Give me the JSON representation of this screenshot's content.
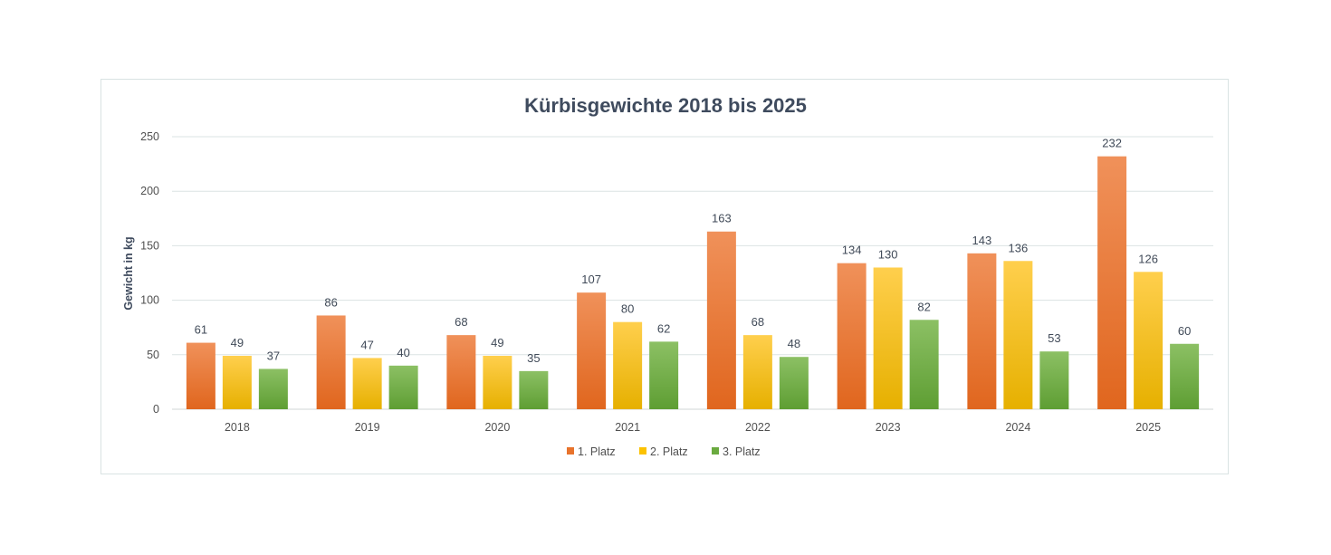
{
  "chart_data": {
    "type": "bar",
    "title": "Kürbisgewichte 2018 bis 2025",
    "xlabel": "",
    "ylabel": "Gewicht in kg",
    "ylim": [
      0,
      250
    ],
    "yticks": [
      0,
      50,
      100,
      150,
      200,
      250
    ],
    "grid": true,
    "legend_position": "bottom",
    "categories": [
      "2018",
      "2019",
      "2020",
      "2021",
      "2022",
      "2023",
      "2024",
      "2025"
    ],
    "series": [
      {
        "name": "1. Platz",
        "values": [
          61,
          86,
          68,
          107,
          163,
          134,
          143,
          232
        ],
        "color_top": "#f0915a",
        "color_bottom": "#e0661e",
        "legend_color": "#e8732c"
      },
      {
        "name": "2. Platz",
        "values": [
          49,
          47,
          49,
          80,
          68,
          130,
          136,
          126
        ],
        "color_top": "#ffcf4d",
        "color_bottom": "#e6b000",
        "legend_color": "#fcc200"
      },
      {
        "name": "3. Platz",
        "values": [
          37,
          40,
          35,
          62,
          48,
          82,
          53,
          60
        ],
        "color_top": "#8cc064",
        "color_bottom": "#5e9e33",
        "legend_color": "#6aaa3f"
      }
    ]
  }
}
